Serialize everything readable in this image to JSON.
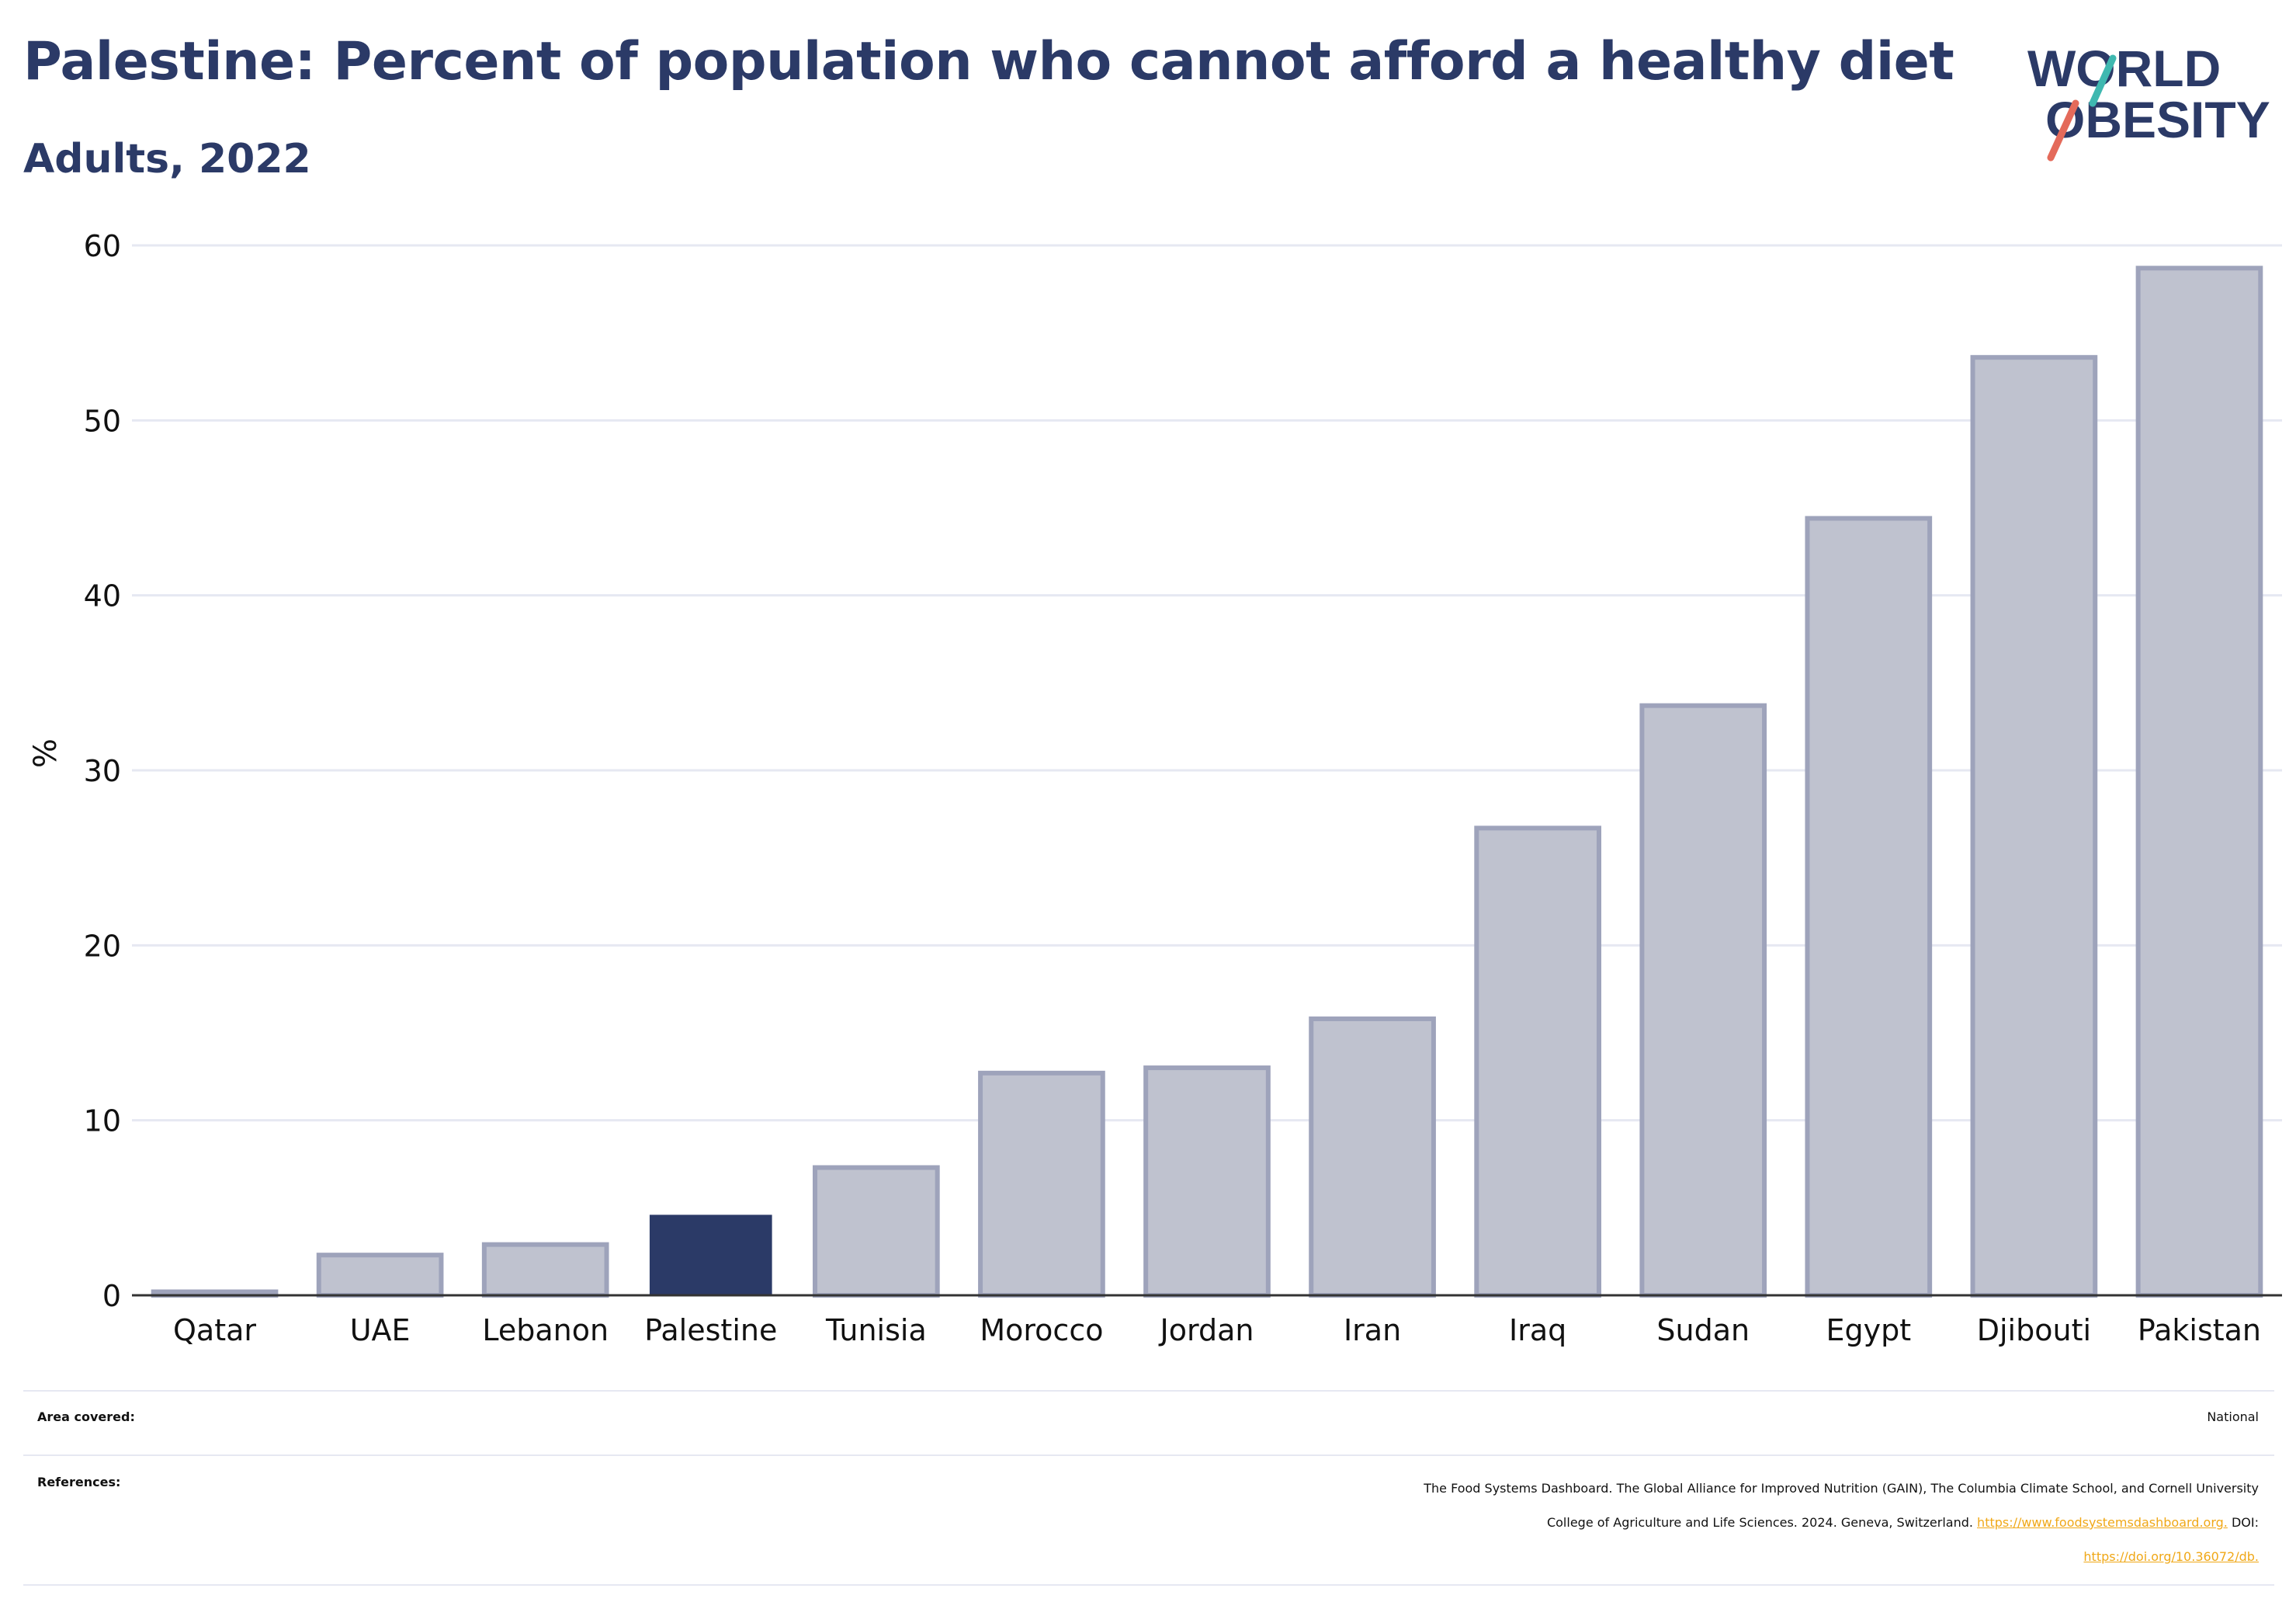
{
  "header": {
    "title": "Palestine: Percent of population who cannot afford a healthy diet",
    "subtitle": "Adults, 2022"
  },
  "logo": {
    "line1": "WORLD",
    "line2": "OBESITY"
  },
  "colors": {
    "highlight": "#2b3a67",
    "bar_fill": "#bfc2cf",
    "bar_stroke": "#9ea3bb",
    "grid": "#e6e8f2",
    "logo_text": "#2b3a67",
    "logo_teal": "#3fb8b0",
    "logo_coral": "#e46a5a",
    "link": "#f0a818"
  },
  "chart_data": {
    "type": "bar",
    "title": "Palestine: Percent of population who cannot afford a healthy diet",
    "subtitle": "Adults, 2022",
    "ylabel": "%",
    "xlabel": "",
    "ylim": [
      0,
      60
    ],
    "yticks": [
      0,
      10,
      20,
      30,
      40,
      50,
      60
    ],
    "grid": true,
    "highlight_category": "Palestine",
    "categories": [
      "Qatar",
      "UAE",
      "Lebanon",
      "Palestine",
      "Tunisia",
      "Morocco",
      "Jordan",
      "Iran",
      "Iraq",
      "Sudan",
      "Egypt",
      "Djibouti",
      "Pakistan"
    ],
    "values": [
      0.2,
      2.3,
      2.9,
      4.6,
      7.3,
      12.7,
      13.0,
      15.8,
      26.7,
      33.7,
      44.4,
      53.6,
      58.7
    ]
  },
  "footer": {
    "area_label": "Area covered:",
    "area_value": "National",
    "references_label": "References:",
    "references_line1": "The Food Systems Dashboard. The Global Alliance for Improved Nutrition (GAIN), The Columbia Climate School, and Cornell University",
    "references_line2_text": "College of Agriculture and Life Sciences. 2024. Geneva, Switzerland.",
    "references_link1": "https://www.foodsystemsdashboard.org.",
    "references_doi_label": "DOI:",
    "references_link2": "https://doi.org/10.36072/db."
  }
}
